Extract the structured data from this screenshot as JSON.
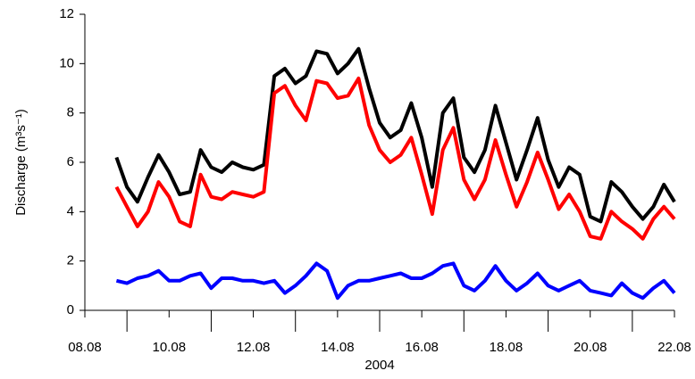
{
  "chart_data": {
    "type": "line",
    "ylabel": "Discharge (m³s⁻¹)",
    "xlabel": "2004",
    "x": [
      8.75,
      9.0,
      9.25,
      9.5,
      9.75,
      10.0,
      10.25,
      10.5,
      10.75,
      11.0,
      11.25,
      11.5,
      11.75,
      12.0,
      12.25,
      12.5,
      12.75,
      13.0,
      13.25,
      13.5,
      13.75,
      14.0,
      14.25,
      14.5,
      14.75,
      15.0,
      15.25,
      15.5,
      15.75,
      16.0,
      16.25,
      16.5,
      16.75,
      17.0,
      17.25,
      17.5,
      17.75,
      18.0,
      18.25,
      18.5,
      18.75,
      19.0,
      19.25,
      19.5,
      19.75,
      20.0,
      20.25,
      20.5,
      20.75,
      21.0,
      21.25,
      21.5,
      21.75,
      22.0
    ],
    "series": [
      {
        "color": "#000000",
        "values": [
          6.2,
          5.0,
          4.4,
          5.4,
          6.3,
          5.6,
          4.7,
          4.8,
          6.5,
          5.8,
          5.6,
          6.0,
          5.8,
          5.7,
          5.9,
          9.5,
          9.8,
          9.2,
          9.5,
          10.5,
          10.4,
          9.6,
          10.0,
          10.6,
          9.0,
          7.6,
          7.0,
          7.3,
          8.4,
          7.0,
          5.0,
          8.0,
          8.6,
          6.2,
          5.6,
          6.5,
          8.3,
          6.8,
          5.3,
          6.5,
          7.8,
          6.1,
          5.0,
          5.8,
          5.5,
          3.8,
          3.6,
          5.2,
          4.8,
          4.2,
          3.7,
          4.2,
          5.1,
          4.4
        ]
      },
      {
        "color": "#ff0000",
        "values": [
          5.0,
          4.2,
          3.4,
          4.0,
          5.2,
          4.6,
          3.6,
          3.4,
          5.5,
          4.6,
          4.5,
          4.8,
          4.7,
          4.6,
          4.8,
          8.8,
          9.1,
          8.3,
          7.7,
          9.3,
          9.2,
          8.6,
          8.7,
          9.4,
          7.5,
          6.5,
          6.0,
          6.3,
          7.0,
          5.5,
          3.9,
          6.5,
          7.4,
          5.3,
          4.5,
          5.3,
          6.9,
          5.5,
          4.2,
          5.2,
          6.4,
          5.3,
          4.1,
          4.7,
          4.0,
          3.0,
          2.9,
          4.0,
          3.6,
          3.3,
          2.9,
          3.7,
          4.2,
          3.7
        ]
      },
      {
        "color": "#0000ff",
        "values": [
          1.2,
          1.1,
          1.3,
          1.4,
          1.6,
          1.2,
          1.2,
          1.4,
          1.5,
          0.9,
          1.3,
          1.3,
          1.2,
          1.2,
          1.1,
          1.2,
          0.7,
          1.0,
          1.4,
          1.9,
          1.6,
          0.5,
          1.0,
          1.2,
          1.2,
          1.3,
          1.4,
          1.5,
          1.3,
          1.3,
          1.5,
          1.8,
          1.9,
          1.0,
          0.8,
          1.2,
          1.8,
          1.2,
          0.8,
          1.1,
          1.5,
          1.0,
          0.8,
          1.0,
          1.2,
          0.8,
          0.7,
          0.6,
          1.1,
          0.7,
          0.5,
          0.9,
          1.2,
          0.7
        ]
      }
    ],
    "xlim": [
      8,
      22
    ],
    "xticks": [
      {
        "value": 8,
        "label": "08.08"
      },
      {
        "value": 10,
        "label": "10.08"
      },
      {
        "value": 12,
        "label": "12.08"
      },
      {
        "value": 14,
        "label": "14.08"
      },
      {
        "value": 16,
        "label": "16.08"
      },
      {
        "value": 18,
        "label": "18.08"
      },
      {
        "value": 20,
        "label": "20.08"
      },
      {
        "value": 22,
        "label": "22.08"
      }
    ],
    "xminorticks": [
      9,
      11,
      13,
      15,
      17,
      19,
      21
    ],
    "ylim": [
      0,
      12
    ],
    "yticks": [
      0,
      2,
      4,
      6,
      8,
      10,
      12
    ],
    "grid": false
  }
}
